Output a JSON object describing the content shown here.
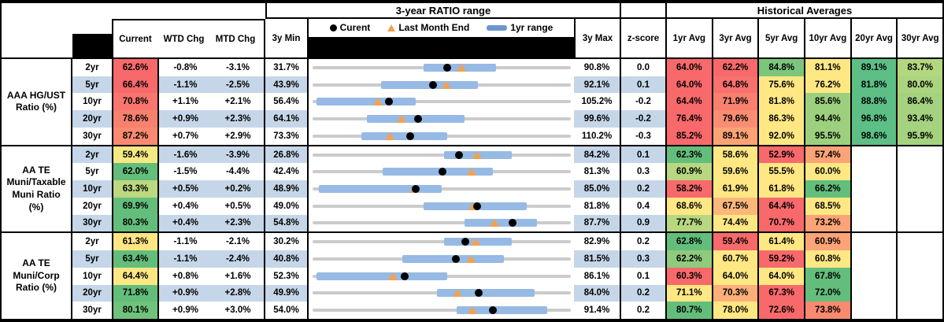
{
  "header": {
    "range_title": "3-year RATIO range",
    "hist_title": "Historical Averages",
    "col_current": "Current",
    "col_wtd": "WTD Chg",
    "col_mtd": "MTD Chg",
    "col_3y_min": "3y Min",
    "col_3y_max": "3y Max",
    "col_zscore": "z-score",
    "avg_cols": [
      "1yr Avg",
      "3yr Avg",
      "5yr Avg",
      "10yr Avg",
      "20yr Avg",
      "30yr Avg"
    ],
    "legend": {
      "current": "Curent",
      "last_month": "Last Month End",
      "range_1yr": "1yr range"
    }
  },
  "colors": {
    "stripe": "#C5D6E8",
    "bar_1yr": "#96BAE4",
    "track": "#CBCBCB",
    "marker_current": "#000000",
    "marker_last_month": "#F2A154",
    "legend_bar": "#6B98CC",
    "heat_red": "#F8696B",
    "heat_yellow": "#FFE884",
    "heat_green": "#63BE7B"
  },
  "chart_data": {
    "type": "table",
    "groups": [
      {
        "label": "AAA HG/UST Ratio (%)",
        "label_lines": [
          "AAA HG/UST",
          "Ratio (%)"
        ],
        "rows": [
          {
            "tenor": "2yr",
            "striped": false,
            "current": {
              "text": "62.6%",
              "bg": "#F8696B"
            },
            "wtd": "-0.8%",
            "mtd": "-3.1%",
            "min": "31.7%",
            "max": "90.8%",
            "z": "0.0",
            "chart": {
              "min": 31.7,
              "max": 90.8,
              "current": 62.6,
              "last_month_end": 65.7,
              "range_1yr": [
                57.1,
                73.7
              ]
            },
            "avgs": [
              {
                "text": "64.0%",
                "bg": "#F8696B"
              },
              {
                "text": "62.2%",
                "bg": "#F8696B"
              },
              {
                "text": "84.8%",
                "bg": "#7CC67C"
              },
              {
                "text": "81.1%",
                "bg": "#FFE884"
              },
              {
                "text": "89.1%",
                "bg": "#5DBE86"
              },
              {
                "text": "83.7%",
                "bg": "#B3D77F"
              }
            ]
          },
          {
            "tenor": "5yr",
            "striped": true,
            "current": {
              "text": "66.4%",
              "bg": "#F8696B"
            },
            "wtd": "-1.1%",
            "mtd": "-2.5%",
            "min": "43.9%",
            "max": "92.1%",
            "z": "0.1",
            "chart": {
              "min": 43.9,
              "max": 92.1,
              "current": 66.4,
              "last_month_end": 68.9,
              "range_1yr": [
                56.7,
                74.7
              ]
            },
            "avgs": [
              {
                "text": "64.0%",
                "bg": "#F8696B"
              },
              {
                "text": "64.8%",
                "bg": "#F8716D"
              },
              {
                "text": "75.6%",
                "bg": "#FFE884"
              },
              {
                "text": "76.2%",
                "bg": "#FFE884"
              },
              {
                "text": "81.8%",
                "bg": "#5DBE86"
              },
              {
                "text": "80.0%",
                "bg": "#ABD47F"
              }
            ]
          },
          {
            "tenor": "10yr",
            "striped": false,
            "current": {
              "text": "70.8%",
              "bg": "#F8766E"
            },
            "wtd": "+1.1%",
            "mtd": "+2.1%",
            "min": "56.4%",
            "max": "105.2%",
            "z": "-0.2",
            "chart": {
              "min": 56.4,
              "max": 105.2,
              "current": 70.8,
              "last_month_end": 68.7,
              "range_1yr": [
                57.1,
                75.9
              ]
            },
            "avgs": [
              {
                "text": "64.4%",
                "bg": "#F8696B"
              },
              {
                "text": "71.9%",
                "bg": "#F8806F"
              },
              {
                "text": "81.8%",
                "bg": "#FFE884"
              },
              {
                "text": "85.6%",
                "bg": "#9CD07E"
              },
              {
                "text": "88.8%",
                "bg": "#5DBE86"
              },
              {
                "text": "86.4%",
                "bg": "#A5D27F"
              }
            ]
          },
          {
            "tenor": "20yr",
            "striped": true,
            "current": {
              "text": "78.6%",
              "bg": "#F8806F"
            },
            "wtd": "+0.9%",
            "mtd": "+2.3%",
            "min": "64.1%",
            "max": "99.6%",
            "z": "-0.2",
            "chart": {
              "min": 64.1,
              "max": 99.6,
              "current": 78.6,
              "last_month_end": 76.3,
              "range_1yr": [
                71.6,
                85.0
              ]
            },
            "avgs": [
              {
                "text": "76.4%",
                "bg": "#F8696B"
              },
              {
                "text": "79.6%",
                "bg": "#FA8E72"
              },
              {
                "text": "86.3%",
                "bg": "#FFE884"
              },
              {
                "text": "94.4%",
                "bg": "#9CD07E"
              },
              {
                "text": "96.8%",
                "bg": "#5DBE86"
              },
              {
                "text": "93.4%",
                "bg": "#A5D27F"
              }
            ]
          },
          {
            "tenor": "30yr",
            "striped": false,
            "current": {
              "text": "87.2%",
              "bg": "#F98A71"
            },
            "wtd": "+0.7%",
            "mtd": "+2.9%",
            "min": "73.3%",
            "max": "110.2%",
            "z": "-0.3",
            "chart": {
              "min": 73.3,
              "max": 110.2,
              "current": 87.2,
              "last_month_end": 84.3,
              "range_1yr": [
                80.3,
                92.5
              ]
            },
            "avgs": [
              {
                "text": "85.2%",
                "bg": "#F8696B"
              },
              {
                "text": "89.1%",
                "bg": "#FCA376"
              },
              {
                "text": "92.0%",
                "bg": "#FFE884"
              },
              {
                "text": "95.5%",
                "bg": "#9CD07E"
              },
              {
                "text": "98.6%",
                "bg": "#5DBE86"
              },
              {
                "text": "95.9%",
                "bg": "#A5D27F"
              }
            ]
          }
        ]
      },
      {
        "label": "AA TE Muni/Taxable Muni Ratio (%)",
        "label_lines": [
          "AA TE",
          "Muni/Taxable",
          "Muni Ratio",
          "(%)"
        ],
        "rows": [
          {
            "tenor": "2yr",
            "striped": true,
            "current": {
              "text": "59.4%",
              "bg": "#F5E983"
            },
            "wtd": "-1.6%",
            "mtd": "-3.9%",
            "min": "26.8%",
            "max": "84.2%",
            "z": "0.1",
            "chart": {
              "min": 26.8,
              "max": 84.2,
              "current": 59.4,
              "last_month_end": 63.3,
              "range_1yr": [
                56.1,
                71.0
              ]
            },
            "avgs": [
              {
                "text": "62.3%",
                "bg": "#63BE7B"
              },
              {
                "text": "58.6%",
                "bg": "#FFE884"
              },
              {
                "text": "52.9%",
                "bg": "#F8696B"
              },
              {
                "text": "57.4%",
                "bg": "#FCA377"
              },
              {
                "text": "",
                "bg": ""
              },
              {
                "text": "",
                "bg": ""
              }
            ]
          },
          {
            "tenor": "5yr",
            "striped": false,
            "current": {
              "text": "62.0%",
              "bg": "#63BE7B"
            },
            "wtd": "-1.5%",
            "mtd": "-4.4%",
            "min": "42.4%",
            "max": "81.3%",
            "z": "0.3",
            "chart": {
              "min": 42.4,
              "max": 81.3,
              "current": 62.0,
              "last_month_end": 66.4,
              "range_1yr": [
                52.9,
                69.6
              ]
            },
            "avgs": [
              {
                "text": "60.9%",
                "bg": "#B7D780"
              },
              {
                "text": "59.6%",
                "bg": "#FFE884"
              },
              {
                "text": "55.5%",
                "bg": "#FFE884"
              },
              {
                "text": "60.0%",
                "bg": "#FFE884"
              },
              {
                "text": "",
                "bg": ""
              },
              {
                "text": "",
                "bg": ""
              }
            ]
          },
          {
            "tenor": "10yr",
            "striped": true,
            "current": {
              "text": "63.3%",
              "bg": "#BCD881"
            },
            "wtd": "+0.5%",
            "mtd": "+0.2%",
            "min": "48.9%",
            "max": "85.0%",
            "z": "0.2",
            "chart": {
              "min": 48.9,
              "max": 85.0,
              "current": 63.3,
              "last_month_end": 63.1,
              "range_1yr": [
                49.8,
                67.0
              ]
            },
            "avgs": [
              {
                "text": "58.2%",
                "bg": "#F8696B"
              },
              {
                "text": "61.9%",
                "bg": "#FFE884"
              },
              {
                "text": "61.8%",
                "bg": "#FFE884"
              },
              {
                "text": "66.2%",
                "bg": "#63BE7B"
              },
              {
                "text": "",
                "bg": ""
              },
              {
                "text": "",
                "bg": ""
              }
            ]
          },
          {
            "tenor": "20yr",
            "striped": false,
            "current": {
              "text": "69.9%",
              "bg": "#63BE7B"
            },
            "wtd": "+0.4%",
            "mtd": "+0.5%",
            "min": "49.0%",
            "max": "81.8%",
            "z": "0.4",
            "chart": {
              "min": 49.0,
              "max": 81.8,
              "current": 69.9,
              "last_month_end": 69.4,
              "range_1yr": [
                63.1,
                76.2
              ]
            },
            "avgs": [
              {
                "text": "68.6%",
                "bg": "#FFE884"
              },
              {
                "text": "67.5%",
                "bg": "#FCB87B"
              },
              {
                "text": "64.4%",
                "bg": "#F8696B"
              },
              {
                "text": "68.5%",
                "bg": "#FFE884"
              },
              {
                "text": "",
                "bg": ""
              },
              {
                "text": "",
                "bg": ""
              }
            ]
          },
          {
            "tenor": "30yr",
            "striped": true,
            "current": {
              "text": "80.3%",
              "bg": "#63BE7B"
            },
            "wtd": "+0.4%",
            "mtd": "+2.3%",
            "min": "54.8%",
            "max": "87.7%",
            "z": "0.9",
            "chart": {
              "min": 54.8,
              "max": 87.7,
              "current": 80.3,
              "last_month_end": 78.0,
              "range_1yr": [
                74.2,
                83.4
              ]
            },
            "avgs": [
              {
                "text": "77.7%",
                "bg": "#B7D780"
              },
              {
                "text": "74.4%",
                "bg": "#FFE884"
              },
              {
                "text": "70.7%",
                "bg": "#F8696B"
              },
              {
                "text": "73.2%",
                "bg": "#FCA377"
              },
              {
                "text": "",
                "bg": ""
              },
              {
                "text": "",
                "bg": ""
              }
            ]
          }
        ]
      },
      {
        "label": "AA TE Muni/Corp Ratio (%)",
        "label_lines": [
          "AA TE",
          "Muni/Corp",
          "Ratio (%)"
        ],
        "rows": [
          {
            "tenor": "2yr",
            "striped": false,
            "current": {
              "text": "61.3%",
              "bg": "#FFE583"
            },
            "wtd": "-1.1%",
            "mtd": "-2.1%",
            "min": "30.2%",
            "max": "82.9%",
            "z": "0.2",
            "chart": {
              "min": 30.2,
              "max": 82.9,
              "current": 61.3,
              "last_month_end": 63.4,
              "range_1yr": [
                57.1,
                70.8
              ]
            },
            "avgs": [
              {
                "text": "62.8%",
                "bg": "#63BE7B"
              },
              {
                "text": "59.4%",
                "bg": "#F8696B"
              },
              {
                "text": "61.4%",
                "bg": "#FFE884"
              },
              {
                "text": "60.9%",
                "bg": "#FCA377"
              },
              {
                "text": "",
                "bg": ""
              },
              {
                "text": "",
                "bg": ""
              }
            ]
          },
          {
            "tenor": "5yr",
            "striped": true,
            "current": {
              "text": "63.4%",
              "bg": "#63BE7B"
            },
            "wtd": "-1.1%",
            "mtd": "-2.4%",
            "min": "40.8%",
            "max": "81.5%",
            "z": "0.3",
            "chart": {
              "min": 40.8,
              "max": 81.5,
              "current": 63.4,
              "last_month_end": 65.8,
              "range_1yr": [
                55.0,
                70.9
              ]
            },
            "avgs": [
              {
                "text": "62.2%",
                "bg": "#8FCB7D"
              },
              {
                "text": "60.7%",
                "bg": "#FFE884"
              },
              {
                "text": "59.2%",
                "bg": "#F8696B"
              },
              {
                "text": "60.8%",
                "bg": "#FFE884"
              },
              {
                "text": "",
                "bg": ""
              },
              {
                "text": "",
                "bg": ""
              }
            ]
          },
          {
            "tenor": "10yr",
            "striped": false,
            "current": {
              "text": "64.4%",
              "bg": "#FFE884"
            },
            "wtd": "+0.8%",
            "mtd": "+1.6%",
            "min": "52.3%",
            "max": "86.1%",
            "z": "0.1",
            "chart": {
              "min": 52.3,
              "max": 86.1,
              "current": 64.4,
              "last_month_end": 62.8,
              "range_1yr": [
                52.8,
                69.9
              ]
            },
            "avgs": [
              {
                "text": "60.3%",
                "bg": "#F8696B"
              },
              {
                "text": "64.0%",
                "bg": "#FFE884"
              },
              {
                "text": "64.0%",
                "bg": "#FFE884"
              },
              {
                "text": "67.8%",
                "bg": "#63BE7B"
              },
              {
                "text": "",
                "bg": ""
              },
              {
                "text": "",
                "bg": ""
              }
            ]
          },
          {
            "tenor": "20yr",
            "striped": true,
            "current": {
              "text": "71.8%",
              "bg": "#63BE7B"
            },
            "wtd": "+0.9%",
            "mtd": "+2.8%",
            "min": "49.9%",
            "max": "84.0%",
            "z": "0.2",
            "chart": {
              "min": 49.9,
              "max": 84.0,
              "current": 71.8,
              "last_month_end": 69.0,
              "range_1yr": [
                66.3,
                79.2
              ]
            },
            "avgs": [
              {
                "text": "71.1%",
                "bg": "#FFE884"
              },
              {
                "text": "70.3%",
                "bg": "#FCAF78"
              },
              {
                "text": "67.3%",
                "bg": "#F8696B"
              },
              {
                "text": "72.0%",
                "bg": "#63BE7B"
              },
              {
                "text": "",
                "bg": ""
              },
              {
                "text": "",
                "bg": ""
              }
            ]
          },
          {
            "tenor": "30yr",
            "striped": false,
            "current": {
              "text": "80.1%",
              "bg": "#6FC37B"
            },
            "wtd": "+0.9%",
            "mtd": "+3.0%",
            "min": "54.0%",
            "max": "91.4%",
            "z": "0.2",
            "chart": {
              "min": 54.0,
              "max": 91.4,
              "current": 80.1,
              "last_month_end": 77.1,
              "range_1yr": [
                74.9,
                88.0
              ]
            },
            "avgs": [
              {
                "text": "80.7%",
                "bg": "#63BE7B"
              },
              {
                "text": "78.0%",
                "bg": "#FFE884"
              },
              {
                "text": "72.6%",
                "bg": "#F8696B"
              },
              {
                "text": "73.8%",
                "bg": "#F9896F"
              },
              {
                "text": "",
                "bg": ""
              },
              {
                "text": "",
                "bg": ""
              }
            ]
          }
        ]
      }
    ]
  }
}
